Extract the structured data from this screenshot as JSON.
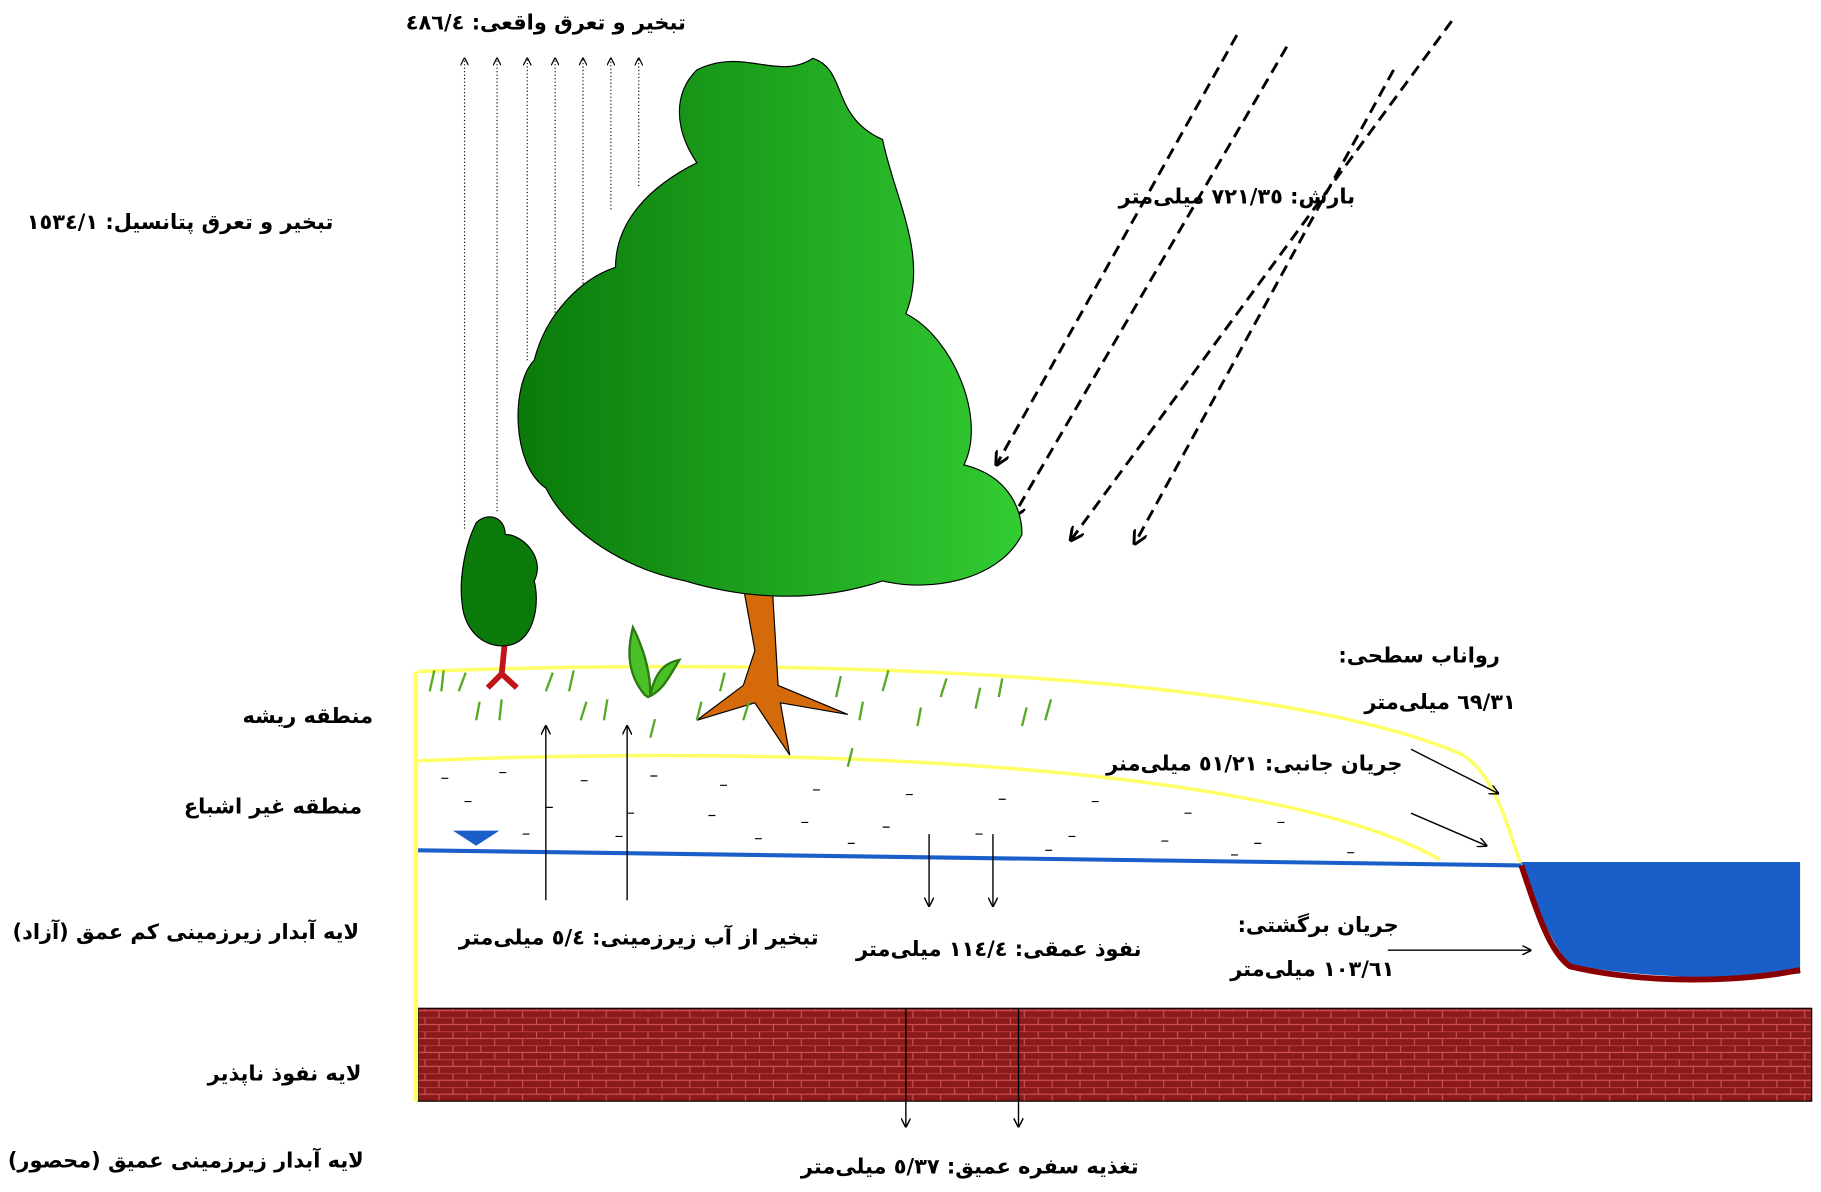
{
  "labels": {
    "actual_et": "تبخیر و تعرق واقعی: ٤٨٦/٤",
    "potential_et": "تبخیر و تعرق پتانسیل: ١٥٣٤/١",
    "precipitation": "بارش: ٧٢١/٣٥ میلی‌متر",
    "runoff_title": "رواناب سطحی:",
    "runoff_value": "٦٩/٣١ میلی‌متر",
    "lateral_flow": "جریان جانبی: ٥١/٢١ میلی‌منر",
    "return_flow_title": "جریان برگشتی:",
    "return_flow_value": "١٠٣/٦١ میلی‌متر",
    "gw_evaporation": "تبخیر از آب زیرزمینی: ٥/٤ میلی‌متر",
    "deep_percolation": "نفوذ عمقی: ١١٤/٤ میلی‌متر",
    "deep_recharge": "تغذیه سفره عمیق: ٥/٣٧ میلی‌متر"
  },
  "zones": [
    "منطقه ریشه",
    "منطقه غیر اشباع",
    "لایه آبدار زیرزمینی کم عمق (آزاد)",
    "لایه نفوذ ناپذیر",
    "لایه آبدار زیرزمینی عمیق (محصور)"
  ]
}
